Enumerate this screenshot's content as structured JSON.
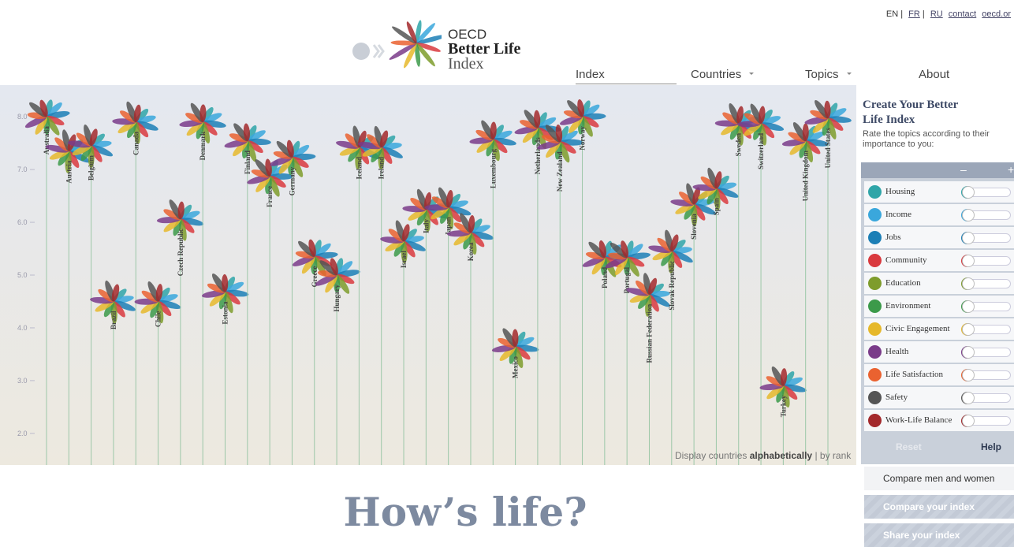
{
  "header": {
    "brand": "OECD",
    "title": "Better Life",
    "subtitle": "Index",
    "languages": [
      "EN",
      "FR",
      "RU"
    ],
    "separator": "|",
    "links": [
      "contact",
      "oecd.or"
    ]
  },
  "nav": [
    "Index",
    "Countries",
    "Topics",
    "About"
  ],
  "chart_data": {
    "type": "flower",
    "categories": [
      "Australia",
      "Austria",
      "Belgium",
      "Brazil",
      "Canada",
      "Chile",
      "Czech Republic",
      "Denmark",
      "Estonia",
      "Finland",
      "France",
      "Germany",
      "Greece",
      "Hungary",
      "Iceland",
      "Ireland",
      "Israel",
      "Italy",
      "Japan",
      "Korea",
      "Luxembourg",
      "Mexico",
      "Netherlands",
      "New Zealand",
      "Norway",
      "Poland",
      "Portugal",
      "Russian Federation",
      "Slovak Republic",
      "Slovenia",
      "Spain",
      "Sweden",
      "Switzerland",
      "Turkey",
      "United Kingdom",
      "United States"
    ],
    "values": [
      8.0,
      7.35,
      7.45,
      4.5,
      7.9,
      4.5,
      6.06,
      7.9,
      4.68,
      7.54,
      6.87,
      7.23,
      5.35,
      5.0,
      7.42,
      7.42,
      5.64,
      6.24,
      6.28,
      5.8,
      7.57,
      3.64,
      7.79,
      7.52,
      8.0,
      5.33,
      5.33,
      4.63,
      5.45,
      6.34,
      6.64,
      7.87,
      7.87,
      2.9,
      7.54,
      7.97
    ],
    "ylim": [
      1.4,
      8.6
    ],
    "yticks": [
      {
        "value": 2,
        "label": "2.0"
      },
      {
        "value": 3,
        "label": "3.0"
      },
      {
        "value": 4,
        "label": "4.0"
      },
      {
        "value": 5,
        "label": "5.0"
      },
      {
        "value": 6,
        "label": "6.0"
      },
      {
        "value": 7,
        "label": "7.0"
      },
      {
        "value": 8,
        "label": "8.0"
      }
    ]
  },
  "sort": {
    "label": "Display countries",
    "options": [
      "alphabetically",
      "by rank"
    ],
    "separator": "|"
  },
  "sidebar": {
    "title": "Create Your Better Life Index",
    "intro": "Rate the topics according to their importance to you:",
    "minus": "–",
    "plus": "+",
    "topics": [
      {
        "name": "Housing",
        "color": "#2fa5a8"
      },
      {
        "name": "Income",
        "color": "#3aa7dc"
      },
      {
        "name": "Jobs",
        "color": "#1c7fb6"
      },
      {
        "name": "Community",
        "color": "#d9393e"
      },
      {
        "name": "Education",
        "color": "#7e9c2c"
      },
      {
        "name": "Environment",
        "color": "#3c9a4a"
      },
      {
        "name": "Civic Engagement",
        "color": "#e6b82b"
      },
      {
        "name": "Health",
        "color": "#7a3b89"
      },
      {
        "name": "Life Satisfaction",
        "color": "#ea6230"
      },
      {
        "name": "Safety",
        "color": "#555555"
      },
      {
        "name": "Work-Life Balance",
        "color": "#a3292c"
      }
    ],
    "reset": "Reset",
    "help": "Help",
    "actions": [
      "Compare men and women",
      "Compare your index",
      "Share your index"
    ]
  },
  "headline": "How’s life?"
}
